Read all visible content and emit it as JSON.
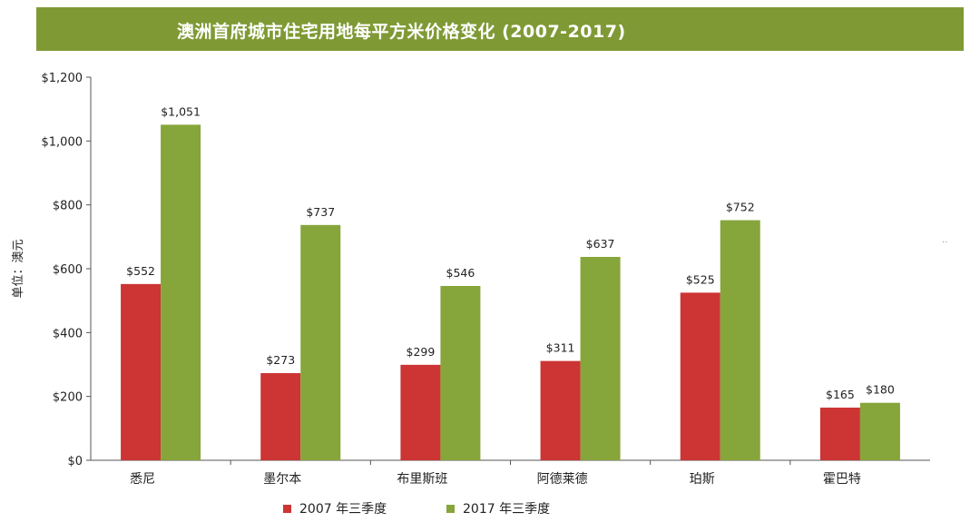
{
  "chart_data": {
    "type": "bar",
    "title": "澳洲首府城市住宅用地每平方米价格变化 (2007-2017)",
    "ylabel": "单位：澳元",
    "xlabel": "",
    "ylim": [
      0,
      1200
    ],
    "yticks": [
      0,
      200,
      400,
      600,
      800,
      1000,
      1200
    ],
    "ytick_labels": [
      "$0",
      "$200",
      "$400",
      "$600",
      "$800",
      "$1,000",
      "$1,200"
    ],
    "categories": [
      "悉尼",
      "墨尔本",
      "布里斯班",
      "阿德莱德",
      "珀斯",
      "霍巴特"
    ],
    "series": [
      {
        "name": "2007 年三季度",
        "color": "#cd3434",
        "values": [
          552,
          273,
          299,
          311,
          525,
          165
        ],
        "labels": [
          "$552",
          "$273",
          "$299",
          "$311",
          "$525",
          "$165"
        ]
      },
      {
        "name": "2017 年三季度",
        "color": "#86a53a",
        "values": [
          1051,
          737,
          546,
          637,
          752,
          180
        ],
        "labels": [
          "$1,051",
          "$737",
          "$546",
          "$637",
          "$752",
          "$180"
        ]
      }
    ],
    "legend_position": "bottom"
  },
  "colors": {
    "title_bar": "#7f9a35",
    "axis": "#555555"
  }
}
